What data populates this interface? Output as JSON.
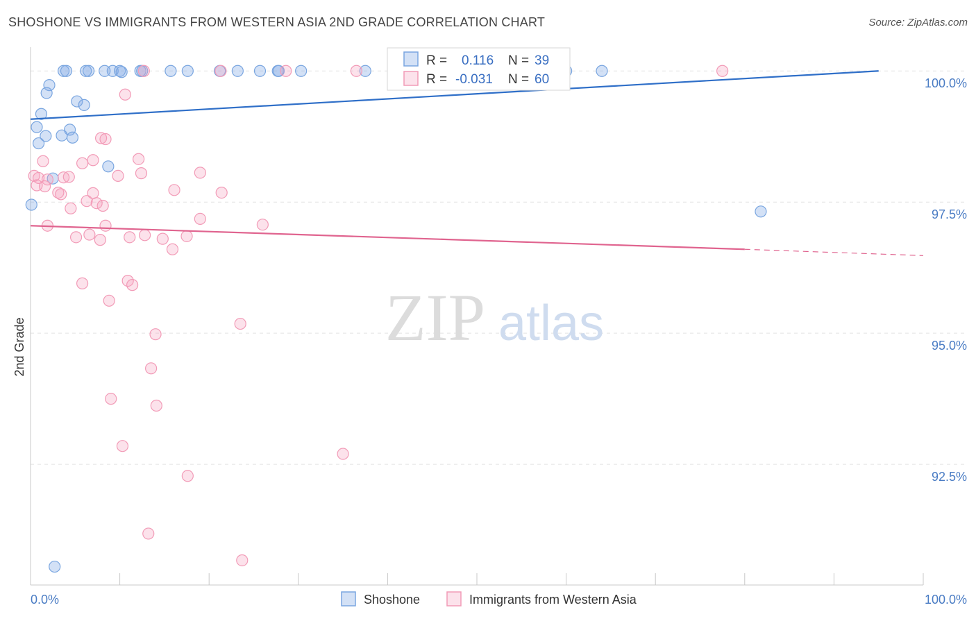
{
  "title": "SHOSHONE VS IMMIGRANTS FROM WESTERN ASIA 2ND GRADE CORRELATION CHART",
  "source": "Source: ZipAtlas.com",
  "watermark": {
    "zip": "ZIP",
    "atlas": "atlas"
  },
  "stats": {
    "r_label": "R =",
    "n_label": "N =",
    "rows": [
      {
        "r": "0.116",
        "n": "39"
      },
      {
        "r": "-0.031",
        "n": "60"
      }
    ]
  },
  "chart_data": {
    "type": "scatter",
    "title": "SHOSHONE VS IMMIGRANTS FROM WESTERN ASIA 2ND GRADE CORRELATION CHART",
    "xlabel": "",
    "ylabel": "2nd Grade",
    "xlim": [
      0,
      100
    ],
    "ylim": [
      90.2,
      100.4
    ],
    "x_tick_labels": [
      "0.0%",
      "100.0%"
    ],
    "y_ticks": [
      {
        "value": 100.0,
        "label": "100.0%"
      },
      {
        "value": 97.5,
        "label": "97.5%"
      },
      {
        "value": 95.0,
        "label": "95.0%"
      },
      {
        "value": 92.5,
        "label": "92.5%"
      }
    ],
    "series": [
      {
        "name": "Shoshone",
        "color": "#7aa6e0",
        "fill": "rgba(130,170,228,0.35)",
        "trend_color": "#2f6fc8",
        "trend": {
          "x0": 0,
          "y0": 99.08,
          "x1": 95,
          "y1": 100.0
        },
        "points": [
          [
            3.7,
            100
          ],
          [
            4.0,
            100
          ],
          [
            6.2,
            100
          ],
          [
            6.5,
            100
          ],
          [
            8.3,
            100
          ],
          [
            9.2,
            100
          ],
          [
            10.0,
            100
          ],
          [
            12.3,
            100
          ],
          [
            12.5,
            100
          ],
          [
            10.2,
            99.98
          ],
          [
            15.7,
            100
          ],
          [
            17.6,
            100
          ],
          [
            21.2,
            100
          ],
          [
            23.2,
            100
          ],
          [
            25.7,
            100
          ],
          [
            27.7,
            100
          ],
          [
            27.8,
            100
          ],
          [
            30.3,
            100
          ],
          [
            37.5,
            100
          ],
          [
            60.0,
            100
          ],
          [
            64.0,
            100
          ],
          [
            2.1,
            99.73
          ],
          [
            1.8,
            99.58
          ],
          [
            5.2,
            99.42
          ],
          [
            6.0,
            99.35
          ],
          [
            1.2,
            99.18
          ],
          [
            0.7,
            98.93
          ],
          [
            4.4,
            98.88
          ],
          [
            1.7,
            98.76
          ],
          [
            3.5,
            98.77
          ],
          [
            4.7,
            98.73
          ],
          [
            0.9,
            98.62
          ],
          [
            8.7,
            98.18
          ],
          [
            2.5,
            97.95
          ],
          [
            0.1,
            97.45
          ],
          [
            81.8,
            97.32
          ],
          [
            2.7,
            90.55
          ]
        ]
      },
      {
        "name": "Immigrants from Western Asia",
        "color": "#f29bb7",
        "fill": "rgba(244,160,190,0.30)",
        "trend_color": "#e0648f",
        "trend": {
          "x0": 0,
          "y0": 97.05,
          "x1": 80,
          "y1": 96.6,
          "dash_x1": 100,
          "dash_y1": 96.48
        },
        "points": [
          [
            12.7,
            100
          ],
          [
            21.3,
            100
          ],
          [
            28.6,
            100
          ],
          [
            36.5,
            100
          ],
          [
            77.5,
            100
          ],
          [
            10.6,
            99.55
          ],
          [
            7.9,
            98.72
          ],
          [
            8.4,
            98.7
          ],
          [
            1.4,
            98.28
          ],
          [
            5.8,
            98.24
          ],
          [
            7.0,
            98.3
          ],
          [
            12.1,
            98.32
          ],
          [
            12.4,
            98.05
          ],
          [
            19.0,
            98.06
          ],
          [
            0.4,
            98.0
          ],
          [
            0.9,
            97.96
          ],
          [
            1.9,
            97.93
          ],
          [
            3.7,
            97.97
          ],
          [
            4.3,
            97.98
          ],
          [
            9.8,
            98.0
          ],
          [
            0.7,
            97.82
          ],
          [
            1.6,
            97.8
          ],
          [
            3.1,
            97.68
          ],
          [
            3.4,
            97.65
          ],
          [
            7.0,
            97.67
          ],
          [
            16.1,
            97.73
          ],
          [
            21.4,
            97.68
          ],
          [
            6.3,
            97.52
          ],
          [
            7.4,
            97.48
          ],
          [
            8.1,
            97.43
          ],
          [
            4.5,
            97.38
          ],
          [
            1.9,
            97.05
          ],
          [
            8.4,
            97.05
          ],
          [
            19.0,
            97.18
          ],
          [
            26.0,
            97.07
          ],
          [
            5.1,
            96.83
          ],
          [
            6.6,
            96.88
          ],
          [
            7.8,
            96.78
          ],
          [
            11.1,
            96.83
          ],
          [
            12.8,
            96.87
          ],
          [
            14.8,
            96.8
          ],
          [
            15.9,
            96.6
          ],
          [
            17.5,
            96.85
          ],
          [
            5.8,
            95.95
          ],
          [
            10.9,
            96.0
          ],
          [
            11.4,
            95.92
          ],
          [
            8.8,
            95.62
          ],
          [
            14.0,
            94.98
          ],
          [
            23.5,
            95.18
          ],
          [
            13.5,
            94.33
          ],
          [
            9.0,
            93.75
          ],
          [
            14.1,
            93.62
          ],
          [
            10.3,
            92.85
          ],
          [
            35.0,
            92.7
          ],
          [
            17.6,
            92.28
          ],
          [
            13.2,
            91.18
          ],
          [
            23.7,
            90.67
          ]
        ]
      }
    ],
    "legend": [
      "Shoshone",
      "Immigrants from Western Asia"
    ],
    "legend_position": "bottom-center"
  }
}
